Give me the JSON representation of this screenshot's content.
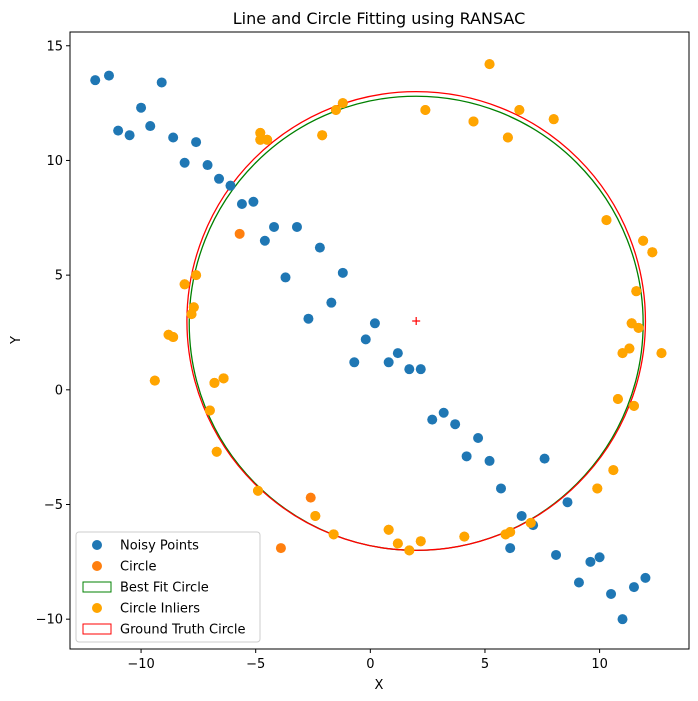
{
  "chart_data": {
    "type": "scatter",
    "title": "Line and Circle Fitting using RANSAC",
    "xlabel": "X",
    "ylabel": "Y",
    "xlim": [
      -13.1,
      13.9
    ],
    "ylim": [
      -11.3,
      15.6
    ],
    "xticks": [
      -10,
      -5,
      0,
      5,
      10
    ],
    "yticks": [
      -10,
      -5,
      0,
      5,
      10,
      15
    ],
    "tick_labels_x": [
      "−10",
      "−5",
      "0",
      "5",
      "10"
    ],
    "tick_labels_y": [
      "−10",
      "−5",
      "0",
      "5",
      "10",
      "15"
    ],
    "grid": false,
    "legend_position": "lower left",
    "colors": {
      "noisy": "#1f77b4",
      "circle": "#ff7f0e",
      "best_fit": "#008000",
      "inliers": "#ffa500",
      "ground_truth": "#ff0000"
    },
    "legend": [
      {
        "key": "noisy",
        "label": "Noisy Points",
        "kind": "marker"
      },
      {
        "key": "circle",
        "label": "Circle",
        "kind": "marker"
      },
      {
        "key": "best_fit",
        "label": "Best Fit Circle",
        "kind": "patch"
      },
      {
        "key": "inliers",
        "label": "Circle Inliers",
        "kind": "marker"
      },
      {
        "key": "ground_truth",
        "label": "Ground Truth Circle",
        "kind": "patch"
      }
    ],
    "ground_truth_circle": {
      "cx": 2.0,
      "cy": 3.0,
      "r": 10.0
    },
    "best_fit_circle": {
      "cx": 2.0,
      "cy": 2.9,
      "r": 9.9
    },
    "center_marker": {
      "x": 2.0,
      "y": 3.0
    },
    "series": [
      {
        "name": "Noisy Points",
        "points": [
          [
            -12.0,
            13.5
          ],
          [
            -11.4,
            13.7
          ],
          [
            -11.0,
            11.3
          ],
          [
            -10.5,
            11.1
          ],
          [
            -10.0,
            12.3
          ],
          [
            -9.6,
            11.5
          ],
          [
            -9.1,
            13.4
          ],
          [
            -8.6,
            11.0
          ],
          [
            -8.1,
            9.9
          ],
          [
            -7.6,
            10.8
          ],
          [
            -7.1,
            9.8
          ],
          [
            -6.6,
            9.2
          ],
          [
            -6.1,
            8.9
          ],
          [
            -5.6,
            8.1
          ],
          [
            -5.1,
            8.2
          ],
          [
            -4.6,
            6.5
          ],
          [
            -4.2,
            7.1
          ],
          [
            -3.7,
            4.9
          ],
          [
            -3.2,
            7.1
          ],
          [
            -2.7,
            3.1
          ],
          [
            -2.2,
            6.2
          ],
          [
            -1.7,
            3.8
          ],
          [
            -1.2,
            5.1
          ],
          [
            -0.7,
            1.2
          ],
          [
            -0.2,
            2.2
          ],
          [
            0.2,
            2.9
          ],
          [
            0.8,
            1.2
          ],
          [
            1.2,
            1.6
          ],
          [
            1.7,
            0.9
          ],
          [
            2.2,
            0.9
          ],
          [
            2.7,
            -1.3
          ],
          [
            3.2,
            -1.0
          ],
          [
            3.7,
            -1.5
          ],
          [
            4.2,
            -2.9
          ],
          [
            4.7,
            -2.1
          ],
          [
            5.2,
            -3.1
          ],
          [
            5.7,
            -4.3
          ],
          [
            6.1,
            -6.9
          ],
          [
            6.6,
            -5.5
          ],
          [
            7.1,
            -5.9
          ],
          [
            7.6,
            -3.0
          ],
          [
            8.1,
            -7.2
          ],
          [
            8.6,
            -4.9
          ],
          [
            9.1,
            -8.4
          ],
          [
            9.6,
            -7.5
          ],
          [
            10.0,
            -7.3
          ],
          [
            10.5,
            -8.9
          ],
          [
            11.0,
            -10.0
          ],
          [
            11.5,
            -8.6
          ],
          [
            12.0,
            -8.2
          ]
        ]
      },
      {
        "name": "Circle",
        "points": [
          [
            5.2,
            14.2
          ],
          [
            6.5,
            12.2
          ],
          [
            8.0,
            11.8
          ],
          [
            6.0,
            11.0
          ],
          [
            4.5,
            11.7
          ],
          [
            2.4,
            12.2
          ],
          [
            -1.2,
            12.5
          ],
          [
            -1.5,
            12.2
          ],
          [
            -2.1,
            11.1
          ],
          [
            -4.5,
            10.9
          ],
          [
            -4.8,
            11.2
          ],
          [
            -4.8,
            10.9
          ],
          [
            -5.7,
            6.8
          ],
          [
            -7.6,
            5.0
          ],
          [
            -8.1,
            4.6
          ],
          [
            -7.7,
            3.6
          ],
          [
            -7.8,
            3.3
          ],
          [
            -8.8,
            2.4
          ],
          [
            -8.6,
            2.3
          ],
          [
            -9.4,
            0.4
          ],
          [
            -6.8,
            0.3
          ],
          [
            -6.4,
            0.5
          ],
          [
            -7.0,
            -0.9
          ],
          [
            -6.7,
            -2.7
          ],
          [
            -4.9,
            -4.4
          ],
          [
            -2.6,
            -4.7
          ],
          [
            -2.4,
            -5.5
          ],
          [
            -3.9,
            -6.9
          ],
          [
            -1.6,
            -6.3
          ],
          [
            0.8,
            -6.1
          ],
          [
            1.2,
            -6.7
          ],
          [
            1.7,
            -7.0
          ],
          [
            2.2,
            -6.6
          ],
          [
            4.1,
            -6.4
          ],
          [
            5.9,
            -6.3
          ],
          [
            6.1,
            -6.2
          ],
          [
            7.0,
            -5.8
          ],
          [
            9.9,
            -4.3
          ],
          [
            10.6,
            -3.5
          ],
          [
            10.8,
            -0.4
          ],
          [
            11.5,
            -0.7
          ],
          [
            11.0,
            1.6
          ],
          [
            11.3,
            1.8
          ],
          [
            12.7,
            1.6
          ],
          [
            11.4,
            2.9
          ],
          [
            11.7,
            2.7
          ],
          [
            11.6,
            4.3
          ],
          [
            12.3,
            6.0
          ],
          [
            11.9,
            6.5
          ],
          [
            10.3,
            7.4
          ]
        ]
      },
      {
        "name": "Circle Inliers",
        "points": [
          [
            6.5,
            12.2
          ],
          [
            8.0,
            11.8
          ],
          [
            6.0,
            11.0
          ],
          [
            4.5,
            11.7
          ],
          [
            2.4,
            12.2
          ],
          [
            -1.2,
            12.5
          ],
          [
            -1.5,
            12.2
          ],
          [
            -2.1,
            11.1
          ],
          [
            -4.5,
            10.9
          ],
          [
            -4.8,
            11.2
          ],
          [
            -4.8,
            10.9
          ],
          [
            -7.6,
            5.0
          ],
          [
            -8.1,
            4.6
          ],
          [
            -7.7,
            3.6
          ],
          [
            -7.8,
            3.3
          ],
          [
            -8.8,
            2.4
          ],
          [
            -8.6,
            2.3
          ],
          [
            -9.4,
            0.4
          ],
          [
            -6.8,
            0.3
          ],
          [
            -6.4,
            0.5
          ],
          [
            -7.0,
            -0.9
          ],
          [
            -6.7,
            -2.7
          ],
          [
            -4.9,
            -4.4
          ],
          [
            -2.4,
            -5.5
          ],
          [
            -1.6,
            -6.3
          ],
          [
            0.8,
            -6.1
          ],
          [
            1.2,
            -6.7
          ],
          [
            1.7,
            -7.0
          ],
          [
            2.2,
            -6.6
          ],
          [
            4.1,
            -6.4
          ],
          [
            5.9,
            -6.3
          ],
          [
            6.1,
            -6.2
          ],
          [
            7.0,
            -5.8
          ],
          [
            9.9,
            -4.3
          ],
          [
            10.6,
            -3.5
          ],
          [
            10.8,
            -0.4
          ],
          [
            11.5,
            -0.7
          ],
          [
            11.0,
            1.6
          ],
          [
            11.3,
            1.8
          ],
          [
            12.7,
            1.6
          ],
          [
            11.4,
            2.9
          ],
          [
            11.7,
            2.7
          ],
          [
            11.6,
            4.3
          ],
          [
            12.3,
            6.0
          ],
          [
            11.9,
            6.5
          ],
          [
            10.3,
            7.4
          ],
          [
            5.2,
            14.2
          ]
        ]
      }
    ]
  }
}
